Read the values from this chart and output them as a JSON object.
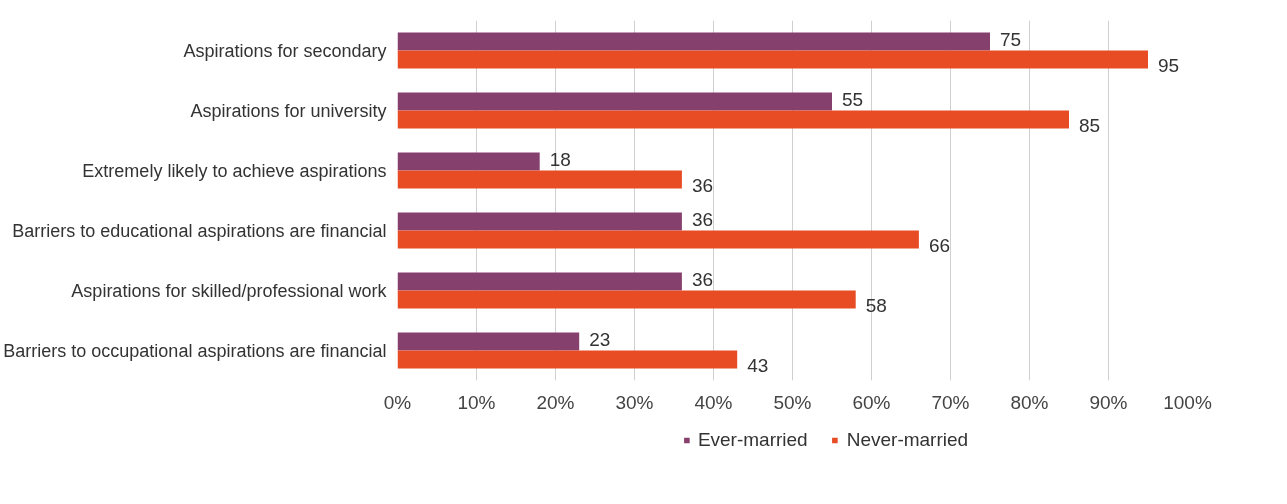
{
  "chart_data": {
    "type": "bar",
    "orientation": "horizontal",
    "categories": [
      "Aspirations for secondary",
      "Aspirations for university",
      "Extremely likely to achieve aspirations",
      "Barriers to educational aspirations are financial",
      "Aspirations for skilled/professional work",
      "Barriers to occupational aspirations are financial"
    ],
    "series": [
      {
        "name": "Ever-married",
        "color": "#86406e",
        "values": [
          75,
          55,
          18,
          36,
          36,
          23
        ]
      },
      {
        "name": "Never-married",
        "color": "#e84c25",
        "values": [
          95,
          85,
          36,
          66,
          58,
          43
        ]
      }
    ],
    "xlim": [
      0,
      100
    ],
    "xticks": [
      {
        "value": 0,
        "label": "0%"
      },
      {
        "value": 10,
        "label": "10%"
      },
      {
        "value": 20,
        "label": "20%"
      },
      {
        "value": 30,
        "label": "30%"
      },
      {
        "value": 40,
        "label": "40%"
      },
      {
        "value": 50,
        "label": "50%"
      },
      {
        "value": 60,
        "label": "60%"
      },
      {
        "value": 70,
        "label": "70%"
      },
      {
        "value": 80,
        "label": "80%"
      },
      {
        "value": 90,
        "label": "90%"
      },
      {
        "value": 100,
        "label": "100%"
      }
    ],
    "grid": "x",
    "legend": "bottom",
    "data_labels": true
  }
}
